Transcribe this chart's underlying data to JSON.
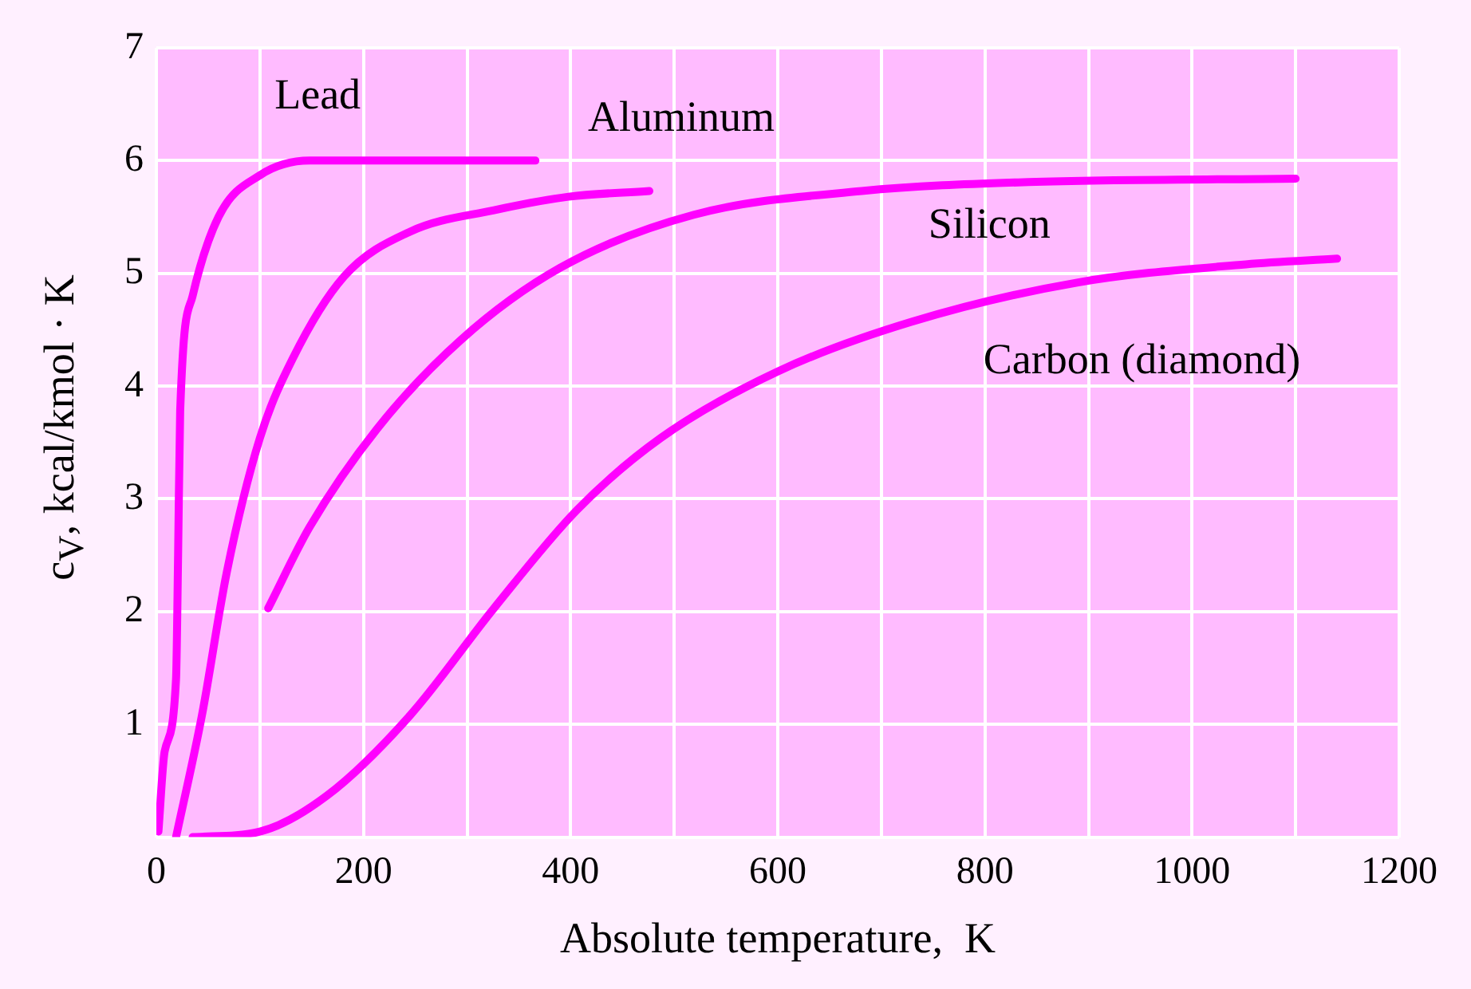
{
  "chart_data": {
    "type": "line",
    "xlabel": "Absolute temperature,  K",
    "ylabel": "c$_{V}$, kcal/kmol · K",
    "xlim": [
      0,
      1200
    ],
    "xticks": [
      0,
      {
        "value": 100,
        "label": null
      },
      200,
      {
        "value": 300,
        "label": null
      },
      400,
      {
        "value": 500,
        "label": null
      },
      600,
      {
        "value": 700,
        "label": null
      },
      800,
      {
        "value": 900,
        "label": null
      },
      1000,
      {
        "value": 1100,
        "label": null
      },
      1200
    ],
    "ylim": [
      0,
      7
    ],
    "yticks": [
      {
        "value": 0,
        "label": null
      },
      1,
      2,
      3,
      4,
      5,
      6,
      7
    ],
    "grid": true,
    "legend": false,
    "marker": "none",
    "line_style": "solid",
    "series": [
      {
        "name": "Lead",
        "color": "#ff00ff",
        "x": [
          2,
          8,
          19,
          21,
          23,
          35,
          60,
          100,
          148,
          213,
          366
        ],
        "values": [
          0.05,
          0.76,
          1.4,
          2.5,
          3.78,
          4.8,
          5.5,
          5.87,
          6.0,
          6.0,
          6.0
        ]
      },
      {
        "name": "Aluminum",
        "color": "#ff00ff",
        "x": [
          19,
          44,
          68,
          100,
          132,
          181,
          245,
          326,
          398,
          476
        ],
        "values": [
          0,
          1.08,
          2.35,
          3.54,
          4.25,
          4.97,
          5.37,
          5.56,
          5.68,
          5.73
        ]
      },
      {
        "name": "Silicon",
        "color": "#ff00ff",
        "x": [
          108,
          148,
          213,
          294,
          390,
          519,
          681,
          842,
          1100
        ],
        "values": [
          2.03,
          2.75,
          3.62,
          4.41,
          5.05,
          5.52,
          5.73,
          5.81,
          5.84
        ]
      },
      {
        "name": "Carbon (diamond)",
        "color": "#ff00ff",
        "x": [
          35,
          100,
          165,
          245,
          326,
          406,
          487,
          600,
          729,
          890,
          1052,
          1140
        ],
        "values": [
          0,
          0.05,
          0.37,
          1.08,
          2.03,
          2.9,
          3.54,
          4.13,
          4.57,
          4.92,
          5.08,
          5.13
        ]
      }
    ]
  }
}
